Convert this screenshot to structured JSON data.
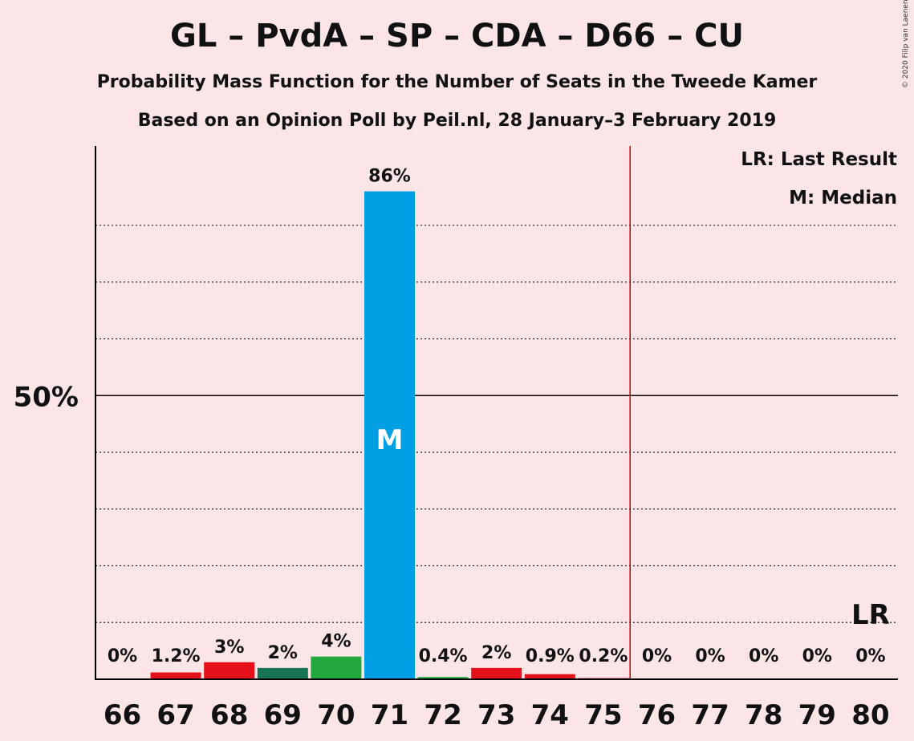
{
  "header": {
    "title": "GL – PvdA – SP – CDA – D66 – CU",
    "subtitle1": "Probability Mass Function for the Number of Seats in the Tweede Kamer",
    "subtitle2": "Based on an Opinion Poll by Peil.nl, 28 January–3 February 2019",
    "copyright": "© 2020 Filip van Laenen"
  },
  "legend": {
    "lr": "LR: Last Result",
    "m": "M: Median"
  },
  "chart_data": {
    "type": "bar",
    "categories": [
      "66",
      "67",
      "68",
      "69",
      "70",
      "71",
      "72",
      "73",
      "74",
      "75",
      "76",
      "77",
      "78",
      "79",
      "80"
    ],
    "values": [
      0,
      1.2,
      3,
      2,
      4,
      86,
      0.4,
      2,
      0.9,
      0.2,
      0,
      0,
      0,
      0,
      0
    ],
    "value_labels": [
      "0%",
      "1.2%",
      "3%",
      "2%",
      "4%",
      "86%",
      "0.4%",
      "2%",
      "0.9%",
      "0.2%",
      "0%",
      "0%",
      "0%",
      "0%",
      "0%"
    ],
    "bar_colors": [
      "#e4101a",
      "#e4101a",
      "#e4101a",
      "#177456",
      "#22a83c",
      "#009fe3",
      "#22a83c",
      "#e4101a",
      "#e4101a",
      "#e4101a",
      "#e4101a",
      "#e4101a",
      "#e4101a",
      "#e4101a",
      "#e4101a"
    ],
    "ylim": [
      0,
      94
    ],
    "ytick_label": "50%",
    "ytick_value": 50,
    "gridlines": [
      10,
      20,
      30,
      40,
      60,
      70,
      80
    ],
    "majority_line_after": "75",
    "majority_color": "#c00000",
    "median_category": "71",
    "median_label": "M",
    "last_result_category": "80",
    "last_result_label": "LR"
  }
}
